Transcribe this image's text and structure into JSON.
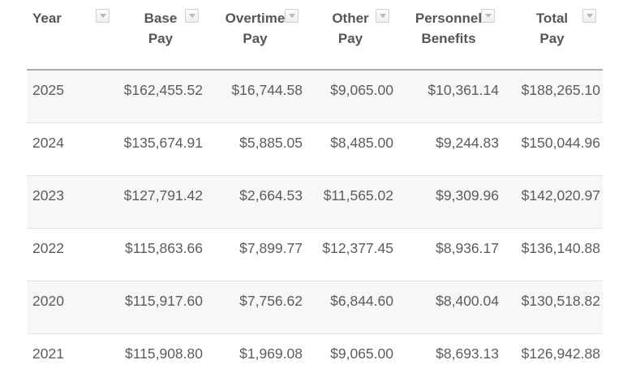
{
  "table": {
    "columns": [
      {
        "line1": "Year",
        "line2": ""
      },
      {
        "line1": "Base",
        "line2": "Pay"
      },
      {
        "line1": "Overtime",
        "line2": "Pay"
      },
      {
        "line1": "Other",
        "line2": "Pay"
      },
      {
        "line1": "Personnel",
        "line2": "Benefits"
      },
      {
        "line1": "Total",
        "line2": "Pay"
      }
    ],
    "rows": [
      {
        "year": "2025",
        "base_pay": "$162,455.52",
        "overtime_pay": "$16,744.58",
        "other_pay": "$9,065.00",
        "personnel_benefits": "$10,361.14",
        "total_pay": "$188,265.10"
      },
      {
        "year": "2024",
        "base_pay": "$135,674.91",
        "overtime_pay": "$5,885.05",
        "other_pay": "$8,485.00",
        "personnel_benefits": "$9,244.83",
        "total_pay": "$150,044.96"
      },
      {
        "year": "2023",
        "base_pay": "$127,791.42",
        "overtime_pay": "$2,664.53",
        "other_pay": "$11,565.02",
        "personnel_benefits": "$9,309.96",
        "total_pay": "$142,020.97"
      },
      {
        "year": "2022",
        "base_pay": "$115,863.66",
        "overtime_pay": "$7,899.77",
        "other_pay": "$12,377.45",
        "personnel_benefits": "$8,936.17",
        "total_pay": "$136,140.88"
      },
      {
        "year": "2020",
        "base_pay": "$115,917.60",
        "overtime_pay": "$7,756.62",
        "other_pay": "$6,844.60",
        "personnel_benefits": "$8,400.04",
        "total_pay": "$130,518.82"
      },
      {
        "year": "2021",
        "base_pay": "$115,908.80",
        "overtime_pay": "$1,969.08",
        "other_pay": "$9,065.00",
        "personnel_benefits": "$8,693.13",
        "total_pay": "$126,942.88"
      }
    ],
    "colors": {
      "zebra_row_bg": "#f7f7f7",
      "row_divider": "#e2e2e2",
      "header_rule": "#a9abad",
      "header_text": "#55565b",
      "body_text": "#5c5c5f",
      "filter_icon_border": "#d1d1d1",
      "filter_icon_arrow": "#b8b8b8"
    }
  }
}
